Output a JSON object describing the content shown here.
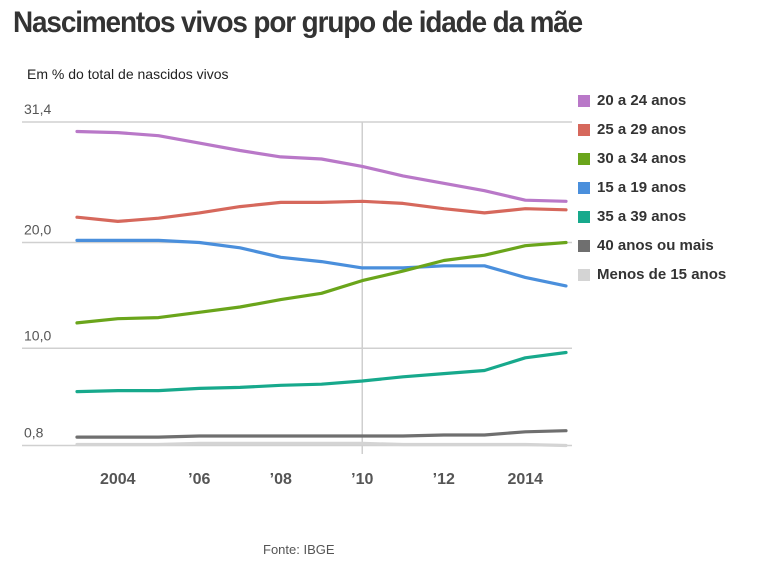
{
  "header": {
    "title": "Nascimentos vivos por grupo de idade da mãe",
    "subtitle": "Em % do total de nascidos vivos"
  },
  "footer": {
    "source": "Fonte: IBGE"
  },
  "chart_data": {
    "type": "line",
    "title": "Nascimentos vivos por grupo de idade da mãe",
    "subtitle": "Em % do total de nascidos vivos",
    "xlabel": "",
    "ylabel": "",
    "x": [
      2003,
      2004,
      2005,
      2006,
      2007,
      2008,
      2009,
      2010,
      2011,
      2012,
      2013,
      2014,
      2015
    ],
    "x_ticks": [
      {
        "value": 2004,
        "label": "2004"
      },
      {
        "value": 2006,
        "label": "’06"
      },
      {
        "value": 2008,
        "label": "’08"
      },
      {
        "value": 2010,
        "label": "’10"
      },
      {
        "value": 2012,
        "label": "’12"
      },
      {
        "value": 2014,
        "label": "2014"
      }
    ],
    "y_ticks": [
      {
        "value": 0.8,
        "label": "0,8"
      },
      {
        "value": 10.0,
        "label": "10,0"
      },
      {
        "value": 20.0,
        "label": "20,0"
      },
      {
        "value": 31.4,
        "label": "31,4"
      }
    ],
    "ylim": [
      0,
      31.4
    ],
    "xlim": [
      2003,
      2015
    ],
    "highlight_x": 2010,
    "grid": true,
    "legend_position": "right",
    "series": [
      {
        "name": "20 a 24 anos",
        "color": "#b978c8",
        "values": [
          30.5,
          30.4,
          30.1,
          29.4,
          28.7,
          28.1,
          27.9,
          27.2,
          26.3,
          25.6,
          24.9,
          24.0,
          23.9
        ]
      },
      {
        "name": "25 a 29 anos",
        "color": "#d6685c",
        "values": [
          22.4,
          22.0,
          22.3,
          22.8,
          23.4,
          23.8,
          23.8,
          23.9,
          23.7,
          23.2,
          22.8,
          23.2,
          23.1
        ]
      },
      {
        "name": "30 a 34 anos",
        "color": "#6aa51b",
        "values": [
          12.4,
          12.8,
          12.9,
          13.4,
          13.9,
          14.6,
          15.2,
          16.4,
          17.3,
          18.3,
          18.8,
          19.7,
          20.0
        ]
      },
      {
        "name": "15 a 19 anos",
        "color": "#4a8fdc",
        "values": [
          20.2,
          20.2,
          20.2,
          20.0,
          19.5,
          18.6,
          18.2,
          17.6,
          17.6,
          17.8,
          17.8,
          16.7,
          15.9
        ]
      },
      {
        "name": "35 a 39 anos",
        "color": "#17a98c",
        "values": [
          5.9,
          6.0,
          6.0,
          6.2,
          6.3,
          6.5,
          6.6,
          6.9,
          7.3,
          7.6,
          7.9,
          9.1,
          9.6
        ]
      },
      {
        "name": "40 anos ou mais",
        "color": "#6f6f6f",
        "values": [
          1.6,
          1.6,
          1.6,
          1.7,
          1.7,
          1.7,
          1.7,
          1.7,
          1.7,
          1.8,
          1.8,
          2.1,
          2.2
        ]
      },
      {
        "name": "Menos de 15 anos",
        "color": "#d4d4d4",
        "values": [
          0.9,
          0.9,
          0.9,
          1.0,
          1.0,
          1.0,
          1.0,
          1.0,
          0.9,
          0.9,
          0.9,
          0.9,
          0.8
        ]
      }
    ]
  }
}
